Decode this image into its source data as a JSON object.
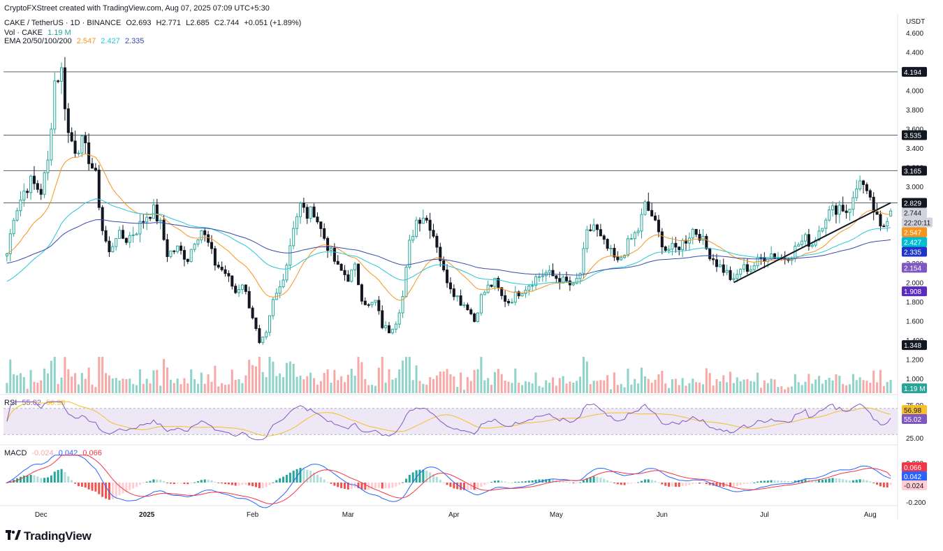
{
  "attribution": "CryptoFXStreet created with TradingView.com, Aug 07, 2025 07:09 UTC+5:30",
  "brand": "TradingView",
  "header": {
    "symbol": "CAKE / TetherUS · 1D · BINANCE",
    "o_label": "O",
    "o": "2.693",
    "h_label": "H",
    "h": "2.771",
    "l_label": "L",
    "l": "2.685",
    "c_label": "C",
    "c": "2.744",
    "change": "+0.051 (+1.89%)",
    "vol_label": "Vol · CAKE",
    "vol": "1.19 M",
    "ema_label": "EMA 20/50/100/200",
    "ema20": "2.547",
    "ema50": "2.427",
    "ema100": "2.335"
  },
  "colors": {
    "up": "#26a69a",
    "down": "#ef5350",
    "vol_up": "#8fd3c9",
    "vol_down": "#f7a9a7",
    "ema20": "#f7941d",
    "ema50": "#26c6da",
    "ema100": "#3949ab",
    "rsi": "#7e57c2",
    "rsi_ma": "#f5c02b",
    "macd": "#2962ff",
    "signal": "#f23645"
  },
  "price_axis": {
    "currency": "USDT",
    "ticks": [
      "4.600",
      "4.400",
      "4.200",
      "4.000",
      "3.800",
      "3.600",
      "3.400",
      "3.200",
      "3.000",
      "2.800",
      "2.600",
      "2.400",
      "2.200",
      "2.000",
      "1.800",
      "1.600",
      "1.400",
      "1.200",
      "1.000"
    ]
  },
  "price_labels": [
    {
      "text": "4.194",
      "bg": "#131722",
      "fg": "#ffffff",
      "value": 4.194
    },
    {
      "text": "3.535",
      "bg": "#131722",
      "fg": "#ffffff",
      "value": 3.535
    },
    {
      "text": "3.165",
      "bg": "#131722",
      "fg": "#ffffff",
      "value": 3.165
    },
    {
      "text": "2.829",
      "bg": "#131722",
      "fg": "#ffffff",
      "value": 2.829
    },
    {
      "text": "2.744",
      "bg": "#d1d4dc",
      "fg": "#131722",
      "value": 2.744
    },
    {
      "text": "22:20:11",
      "bg": "#d1d4dc",
      "fg": "#131722",
      "value": 2.67
    },
    {
      "text": "2.547",
      "bg": "#f7941d",
      "fg": "#ffffff",
      "value": 2.547
    },
    {
      "text": "2.427",
      "bg": "#00bcd4",
      "fg": "#ffffff",
      "value": 2.427
    },
    {
      "text": "2.335",
      "bg": "#1e35c8",
      "fg": "#ffffff",
      "value": 2.335
    },
    {
      "text": "2.154",
      "bg": "#7e57c2",
      "fg": "#ffffff",
      "value": 2.154
    },
    {
      "text": "1.908",
      "bg": "#5b2bbf",
      "fg": "#ffffff",
      "value": 1.908
    },
    {
      "text": "1.348",
      "bg": "#131722",
      "fg": "#ffffff",
      "value": 1.348
    }
  ],
  "vol_tag": "1.19 M",
  "rsi": {
    "label": "RSI",
    "value": "55.02",
    "ma_value": "56.98",
    "ticks": [
      "75.00",
      "25.00"
    ]
  },
  "macd": {
    "label": "MACD",
    "hist": "-0.024",
    "macd": "0.042",
    "signal": "0.066",
    "ticks": [
      "0.200",
      "-0.200"
    ]
  },
  "time_axis": [
    "Dec",
    "2025",
    "Feb",
    "Mar",
    "Apr",
    "May",
    "Jun",
    "Jul",
    "Aug"
  ],
  "chart_data": [
    {
      "type": "candlestick",
      "title": "CAKE / TetherUS · 1D · BINANCE",
      "ylabel": "USDT",
      "ylim": [
        1.0,
        4.6
      ],
      "horizontal_levels": [
        4.194,
        3.535,
        3.165,
        2.829
      ],
      "trendline": {
        "from": [
          "Jun 22, 2025",
          2.0
        ],
        "to": [
          "Aug 07, 2025",
          2.83
        ]
      },
      "close_path": [
        [
          "Nov 21",
          2.3
        ],
        [
          "Nov 23",
          2.7
        ],
        [
          "Nov 26",
          2.95
        ],
        [
          "Nov 28",
          3.05
        ],
        [
          "Dec 01",
          2.95
        ],
        [
          "Dec 03",
          3.25
        ],
        [
          "Dec 05",
          4.1
        ],
        [
          "Dec 07",
          4.2
        ],
        [
          "Dec 09",
          3.55
        ],
        [
          "Dec 11",
          3.4
        ],
        [
          "Dec 13",
          3.45
        ],
        [
          "Dec 15",
          3.3
        ],
        [
          "Dec 17",
          3.1
        ],
        [
          "Dec 19",
          2.55
        ],
        [
          "Dec 21",
          2.3
        ],
        [
          "Dec 23",
          2.5
        ],
        [
          "Dec 26",
          2.45
        ],
        [
          "Dec 29",
          2.55
        ],
        [
          "Jan 01",
          2.7
        ],
        [
          "Jan 03",
          2.75
        ],
        [
          "Jan 05",
          2.6
        ],
        [
          "Jan 07",
          2.3
        ],
        [
          "Jan 10",
          2.35
        ],
        [
          "Jan 13",
          2.25
        ],
        [
          "Jan 15",
          2.45
        ],
        [
          "Jan 17",
          2.55
        ],
        [
          "Jan 19",
          2.4
        ],
        [
          "Jan 21",
          2.2
        ],
        [
          "Jan 24",
          2.1
        ],
        [
          "Jan 27",
          1.9
        ],
        [
          "Jan 29",
          2.0
        ],
        [
          "Feb 01",
          1.65
        ],
        [
          "Feb 03",
          1.35
        ],
        [
          "Feb 05",
          1.45
        ],
        [
          "Feb 07",
          1.8
        ],
        [
          "Feb 09",
          1.95
        ],
        [
          "Feb 11",
          2.2
        ],
        [
          "Feb 13",
          2.6
        ],
        [
          "Feb 15",
          2.8
        ],
        [
          "Feb 17",
          2.7
        ],
        [
          "Feb 19",
          2.75
        ],
        [
          "Feb 21",
          2.55
        ],
        [
          "Feb 24",
          2.3
        ],
        [
          "Feb 26",
          2.15
        ],
        [
          "Mar 01",
          2.05
        ],
        [
          "Mar 03",
          2.15
        ],
        [
          "Mar 05",
          1.85
        ],
        [
          "Mar 07",
          1.75
        ],
        [
          "Mar 09",
          1.8
        ],
        [
          "Mar 11",
          1.55
        ],
        [
          "Mar 13",
          1.5
        ],
        [
          "Mar 15",
          1.6
        ],
        [
          "Mar 17",
          1.85
        ],
        [
          "Mar 19",
          2.4
        ],
        [
          "Mar 21",
          2.65
        ],
        [
          "Mar 23",
          2.7
        ],
        [
          "Mar 25",
          2.6
        ],
        [
          "Mar 27",
          2.4
        ],
        [
          "Mar 29",
          2.1
        ],
        [
          "Apr 01",
          1.9
        ],
        [
          "Apr 03",
          1.8
        ],
        [
          "Apr 05",
          1.75
        ],
        [
          "Apr 07",
          1.6
        ],
        [
          "Apr 09",
          1.85
        ],
        [
          "Apr 11",
          1.95
        ],
        [
          "Apr 13",
          2.0
        ],
        [
          "Apr 15",
          1.85
        ],
        [
          "Apr 17",
          1.8
        ],
        [
          "Apr 20",
          1.9
        ],
        [
          "Apr 22",
          1.95
        ],
        [
          "Apr 25",
          2.05
        ],
        [
          "Apr 28",
          2.1
        ],
        [
          "May 01",
          2.05
        ],
        [
          "May 04",
          2.0
        ],
        [
          "May 06",
          1.95
        ],
        [
          "May 08",
          2.1
        ],
        [
          "May 10",
          2.5
        ],
        [
          "May 12",
          2.6
        ],
        [
          "May 14",
          2.45
        ],
        [
          "May 16",
          2.35
        ],
        [
          "May 19",
          2.2
        ],
        [
          "May 22",
          2.4
        ],
        [
          "May 25",
          2.55
        ],
        [
          "May 27",
          2.8
        ],
        [
          "May 29",
          2.7
        ],
        [
          "May 31",
          2.5
        ],
        [
          "Jun 02",
          2.35
        ],
        [
          "Jun 05",
          2.35
        ],
        [
          "Jun 08",
          2.45
        ],
        [
          "Jun 10",
          2.55
        ],
        [
          "Jun 12",
          2.5
        ],
        [
          "Jun 14",
          2.35
        ],
        [
          "Jun 17",
          2.2
        ],
        [
          "Jun 20",
          2.1
        ],
        [
          "Jun 22",
          2.0
        ],
        [
          "Jun 24",
          2.15
        ],
        [
          "Jun 27",
          2.15
        ],
        [
          "Jun 30",
          2.25
        ],
        [
          "Jul 03",
          2.3
        ],
        [
          "Jul 06",
          2.25
        ],
        [
          "Jul 09",
          2.3
        ],
        [
          "Jul 11",
          2.4
        ],
        [
          "Jul 13",
          2.45
        ],
        [
          "Jul 15",
          2.4
        ],
        [
          "Jul 17",
          2.55
        ],
        [
          "Jul 19",
          2.7
        ],
        [
          "Jul 21",
          2.75
        ],
        [
          "Jul 23",
          2.8
        ],
        [
          "Jul 25",
          2.75
        ],
        [
          "Jul 27",
          2.85
        ],
        [
          "Jul 29",
          3.1
        ],
        [
          "Jul 31",
          2.9
        ],
        [
          "Aug 02",
          2.75
        ],
        [
          "Aug 04",
          2.55
        ],
        [
          "Aug 05",
          2.6
        ],
        [
          "Aug 06",
          2.69
        ],
        [
          "Aug 07",
          2.744
        ]
      ],
      "last_candle": {
        "open": 2.693,
        "high": 2.771,
        "low": 2.685,
        "close": 2.744
      }
    },
    {
      "type": "line",
      "title": "EMA 20/50/100/200",
      "series": [
        {
          "name": "20",
          "values_last": 2.547
        },
        {
          "name": "50",
          "values_last": 2.427
        },
        {
          "name": "100",
          "values_last": 2.335
        }
      ]
    },
    {
      "type": "bar",
      "title": "Vol · CAKE",
      "last_value": "1.19 M"
    },
    {
      "type": "line",
      "title": "RSI",
      "ylim": [
        25,
        75
      ],
      "series": [
        {
          "name": "RSI",
          "last": 55.02
        },
        {
          "name": "MA",
          "last": 56.98
        }
      ]
    },
    {
      "type": "bar",
      "title": "MACD",
      "ylim": [
        -0.2,
        0.2
      ],
      "series": [
        {
          "name": "Histogram",
          "last": -0.024
        },
        {
          "name": "MACD",
          "last": 0.042
        },
        {
          "name": "Signal",
          "last": 0.066
        }
      ]
    }
  ]
}
